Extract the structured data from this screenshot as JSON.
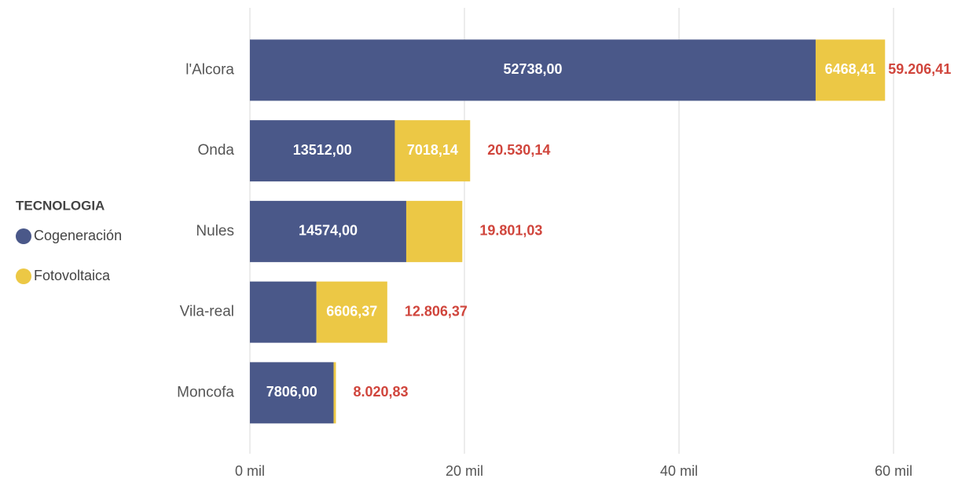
{
  "chart_data": {
    "type": "stacked_bar_horizontal",
    "categories": [
      "l'Alcora",
      "Onda",
      "Nules",
      "Vila-real",
      "Moncofa"
    ],
    "legend_title": "TECNOLOGIA",
    "series": [
      {
        "name": "Cogeneración",
        "color": "#4a5889",
        "values": [
          52738.0,
          13512.0,
          14574.0,
          6200.0,
          7806.0
        ],
        "value_labels": [
          "52738,00",
          "13512,00",
          "14574,00",
          null,
          "7806,00"
        ]
      },
      {
        "name": "Fotovoltaica",
        "color": "#ecc845",
        "values": [
          6468.41,
          7018.14,
          5227.03,
          6606.37,
          214.83
        ],
        "value_labels": [
          "6468,41",
          "7018,14",
          null,
          "6606,37",
          null
        ]
      }
    ],
    "totals": [
      59206.41,
      20530.14,
      19801.03,
      12806.37,
      8020.83
    ],
    "total_labels": [
      "59.206,41",
      "20.530,14",
      "19.801,03",
      "12.806,37",
      "8.020,83"
    ],
    "xlim": [
      0,
      66000
    ],
    "xticks": [
      {
        "value": 0,
        "label": "0 mil"
      },
      {
        "value": 20000,
        "label": "20 mil"
      },
      {
        "value": 40000,
        "label": "40 mil"
      },
      {
        "value": 60000,
        "label": "60 mil"
      }
    ],
    "grid": true
  }
}
